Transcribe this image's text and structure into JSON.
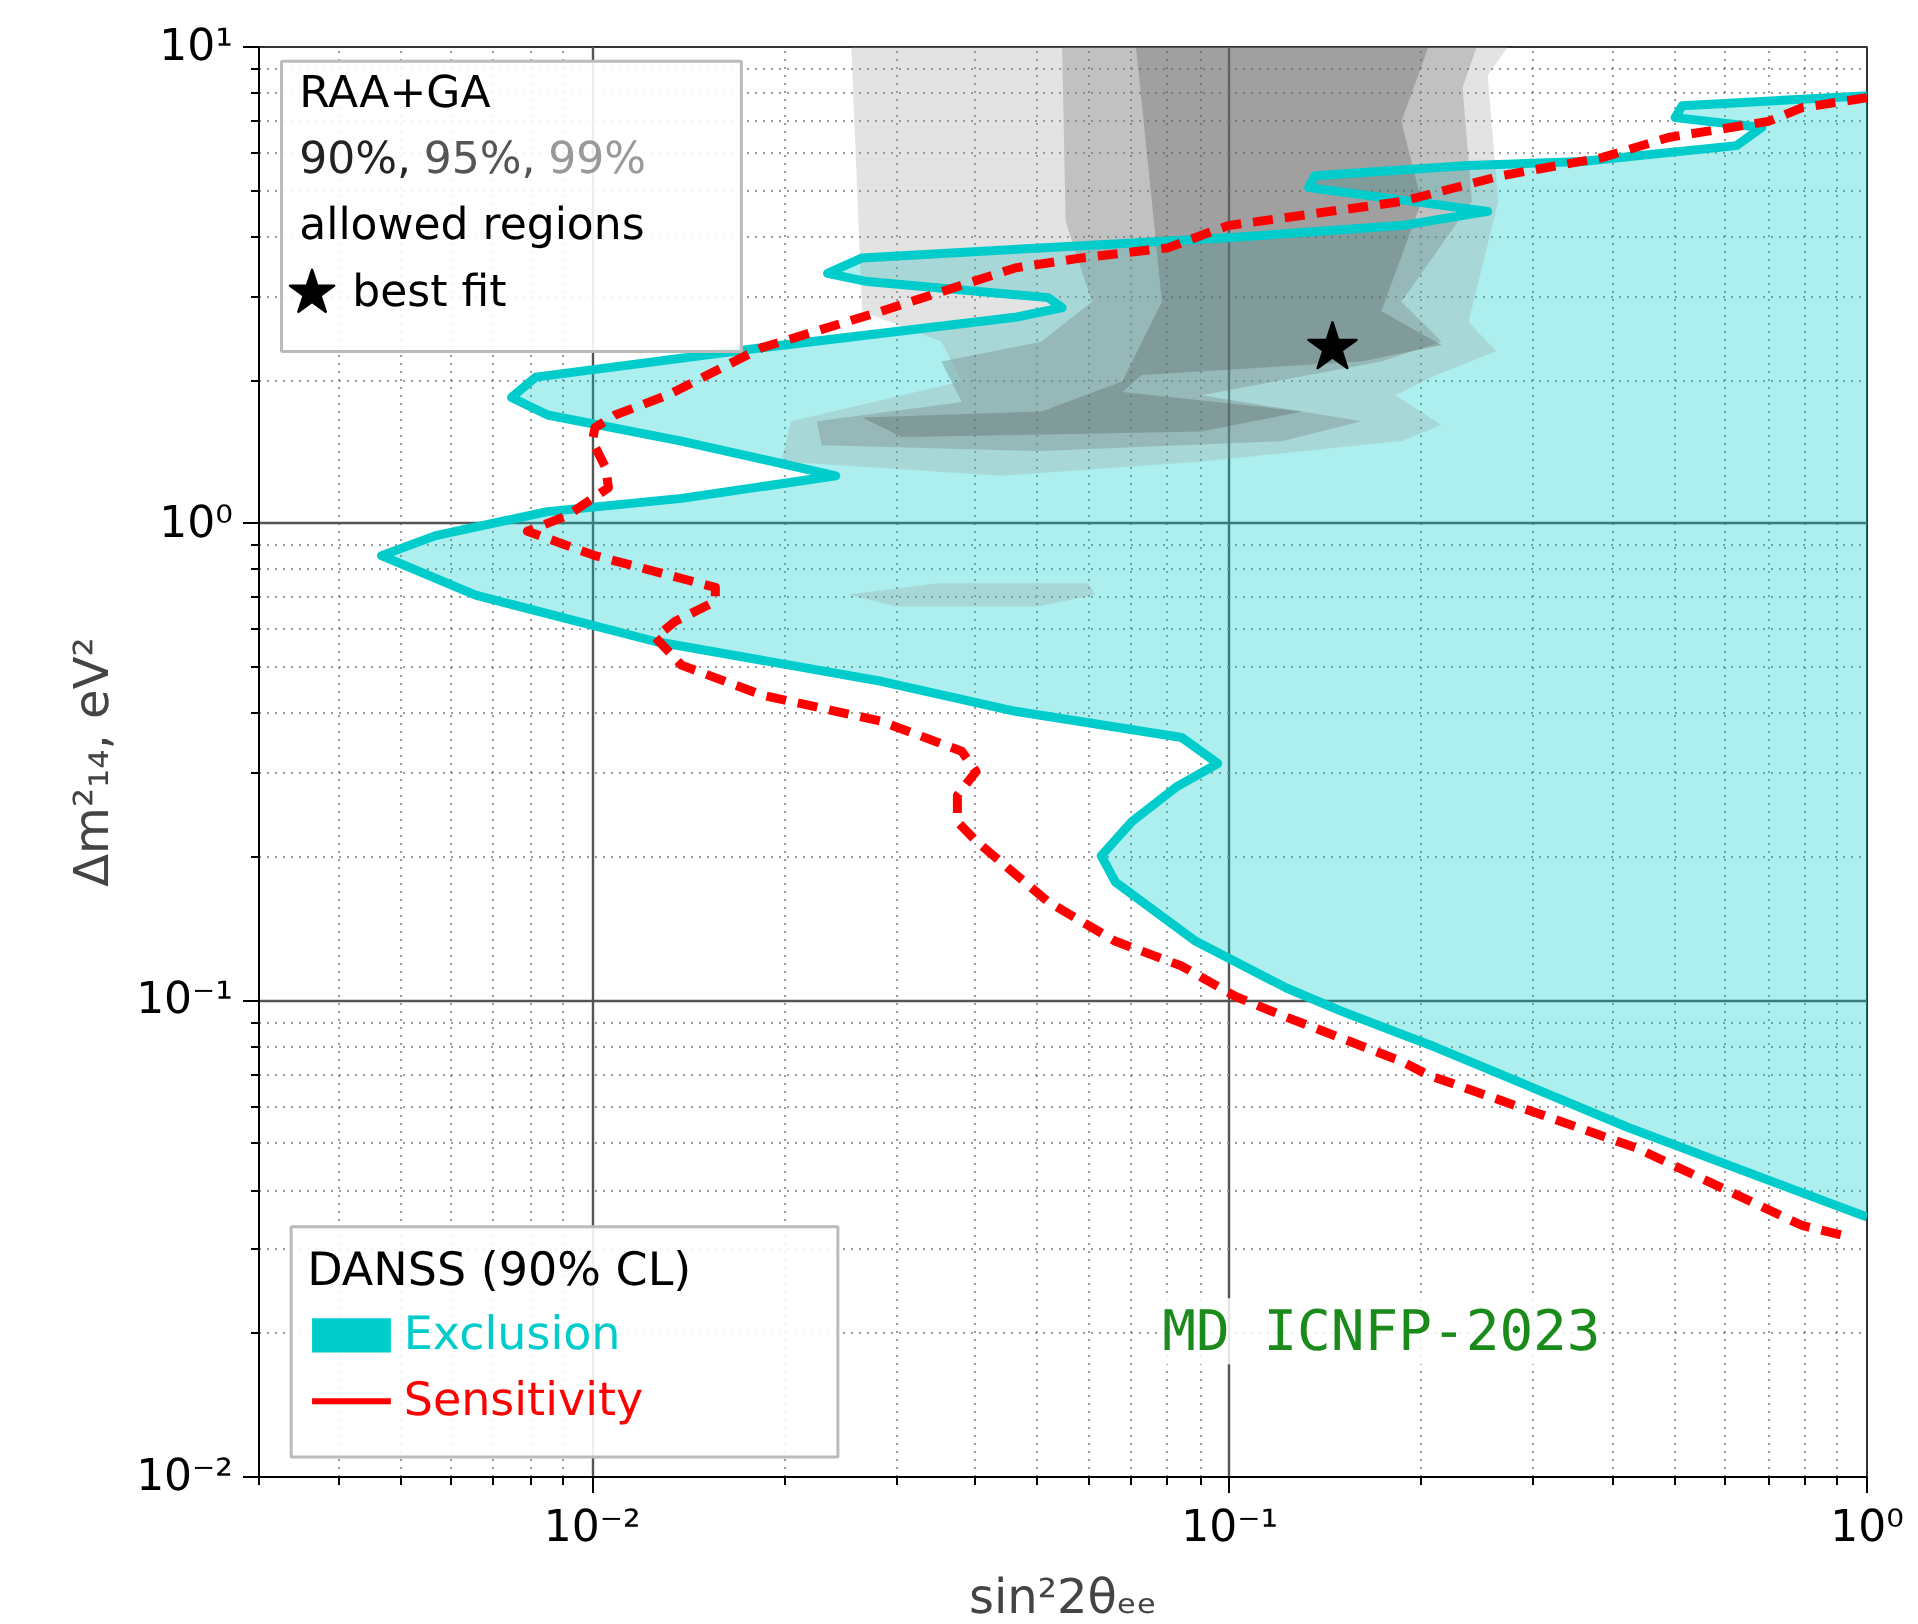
{
  "chart_data": {
    "type": "line",
    "xlabel": "sin²2θₑₑ",
    "ylabel": "Δm²₁₄, eV²",
    "legend_title": "DANSS (90% CL)",
    "annotations": [
      "RAA+GA",
      "allowed regions",
      "MD ICNFP-2023"
    ],
    "log": "xy",
    "xlim": [
      0.003,
      1
    ],
    "ylim": [
      0.01,
      10
    ],
    "xticks": [
      {
        "value": 0.01,
        "label": "10⁻²"
      },
      {
        "value": 0.1,
        "label": "10⁻¹"
      },
      {
        "value": 1,
        "label": "10⁰"
      }
    ],
    "yticks": [
      {
        "value": 0.01,
        "label": "10⁻²"
      },
      {
        "value": 0.1,
        "label": "10⁻¹"
      },
      {
        "value": 1,
        "label": "10⁰"
      },
      {
        "value": 10,
        "label": "10¹"
      }
    ],
    "grid": true,
    "legend": "bottom left",
    "series": [
      {
        "name": "Exclusion",
        "type": "area",
        "color": "#00cccc",
        "x": [
          1.0,
          0.513,
          0.5,
          0.684,
          0.624,
          0.357,
          0.237,
          0.136,
          0.133,
          0.254,
          0.186,
          0.0994,
          0.0586,
          0.0265,
          0.0234,
          0.027,
          0.0519,
          0.0546,
          0.0461,
          0.01845,
          0.00815,
          0.00747,
          0.00851,
          0.0138,
          0.0241,
          0.0138,
          0.00851,
          0.00568,
          0.00467,
          0.00656,
          0.01256,
          0.0284,
          0.0461,
          0.0841,
          0.0958,
          0.0824,
          0.0702,
          0.0629,
          0.0662,
          0.0885,
          0.123,
          0.15,
          0.211,
          0.422,
          1.0
        ],
        "values": [
          7.9,
          7.53,
          7.11,
          6.78,
          6.21,
          5.75,
          5.64,
          5.37,
          5.07,
          4.52,
          4.22,
          3.98,
          3.83,
          3.61,
          3.35,
          3.22,
          2.98,
          2.84,
          2.71,
          2.34,
          2.03,
          1.84,
          1.69,
          1.49,
          1.26,
          1.13,
          1.06,
          0.944,
          0.857,
          0.708,
          0.566,
          0.467,
          0.404,
          0.356,
          0.314,
          0.28,
          0.237,
          0.201,
          0.177,
          0.133,
          0.106,
          0.0948,
          0.0796,
          0.0541,
          0.0351
        ]
      },
      {
        "name": "Sensitivity",
        "type": "line",
        "color": "#ff0000",
        "line_style": "dashed",
        "x": [
          1.0,
          0.791,
          0.7,
          0.488,
          0.384,
          0.267,
          0.186,
          0.0994,
          0.08,
          0.0586,
          0.0461,
          0.0284,
          0.01845,
          0.01312,
          0.01086,
          0.0101,
          0.01,
          0.0105,
          0.0106,
          0.00914,
          0.00791,
          0.0101,
          0.0156,
          0.0156,
          0.0135,
          0.01256,
          0.0138,
          0.01845,
          0.0284,
          0.038,
          0.04,
          0.0374,
          0.0374,
          0.04,
          0.0519,
          0.0662,
          0.0841,
          0.102,
          0.121,
          0.186,
          0.205,
          0.435,
          0.791,
          0.948
        ],
        "values": [
          7.83,
          7.46,
          6.98,
          6.46,
          5.86,
          5.37,
          4.74,
          4.22,
          3.79,
          3.61,
          3.44,
          2.79,
          2.34,
          1.86,
          1.69,
          1.59,
          1.49,
          1.31,
          1.19,
          1.04,
          0.964,
          0.857,
          0.735,
          0.687,
          0.624,
          0.577,
          0.505,
          0.437,
          0.385,
          0.333,
          0.302,
          0.269,
          0.237,
          0.216,
          0.161,
          0.133,
          0.118,
          0.102,
          0.0929,
          0.0745,
          0.0697,
          0.049,
          0.0337,
          0.0318
        ]
      },
      {
        "name": "90%,",
        "type": "area",
        "color": "#222222",
        "x": [
          0.0713,
          0.205,
          0.186,
          0.2,
          0.173,
          0.215,
          0.161,
          0.0728,
          0.0679,
          0.13,
          0.0904,
          0.0306,
          0.0265,
          0.0507,
          0.0679,
          0.0783,
          0.0755
        ],
        "values": [
          10,
          10,
          6.98,
          4.74,
          2.79,
          2.37,
          2.19,
          2.05,
          1.89,
          1.72,
          1.56,
          1.52,
          1.67,
          1.72,
          1.99,
          2.92,
          4.74
        ]
      },
      {
        "name": "95%,",
        "type": "area",
        "color": "#555555",
        "x": [
          0.0546,
          0.244,
          0.232,
          0.24,
          0.186,
          0.215,
          0.173,
          0.0904,
          0.161,
          0.121,
          0.0507,
          0.0229,
          0.0225,
          0.038,
          0.0353,
          0.0507,
          0.0608,
          0.0553
        ],
        "values": [
          10,
          10,
          8.22,
          4.74,
          2.92,
          2.41,
          2.19,
          1.86,
          1.64,
          1.49,
          1.42,
          1.46,
          1.64,
          1.8,
          2.19,
          2.41,
          2.92,
          4.3
        ]
      },
      {
        "name": "99%",
        "type": "area",
        "color": "#999999",
        "x": [
          0.0255,
          0.273,
          0.254,
          0.264,
          0.237,
          0.262,
          0.211,
          0.182,
          0.215,
          0.186,
          0.0904,
          0.0438,
          0.0198,
          0.0205,
          0.038,
          0.0353,
          0.0265,
          null,
          0.0252,
          0.035,
          0.06,
          0.0616,
          0.05,
          0.03
        ],
        "values": [
          10,
          10,
          8.71,
          4.74,
          2.65,
          2.3,
          2.05,
          1.86,
          1.61,
          1.49,
          1.35,
          1.26,
          1.35,
          1.64,
          1.99,
          2.41,
          2.79,
          null,
          0.71,
          0.75,
          0.75,
          0.71,
          0.67,
          0.67
        ]
      },
      {
        "name": "best fit",
        "type": "scatter",
        "color": "#000000",
        "marker": "star",
        "x": [
          0.145
        ],
        "values": [
          2.34
        ]
      }
    ]
  }
}
